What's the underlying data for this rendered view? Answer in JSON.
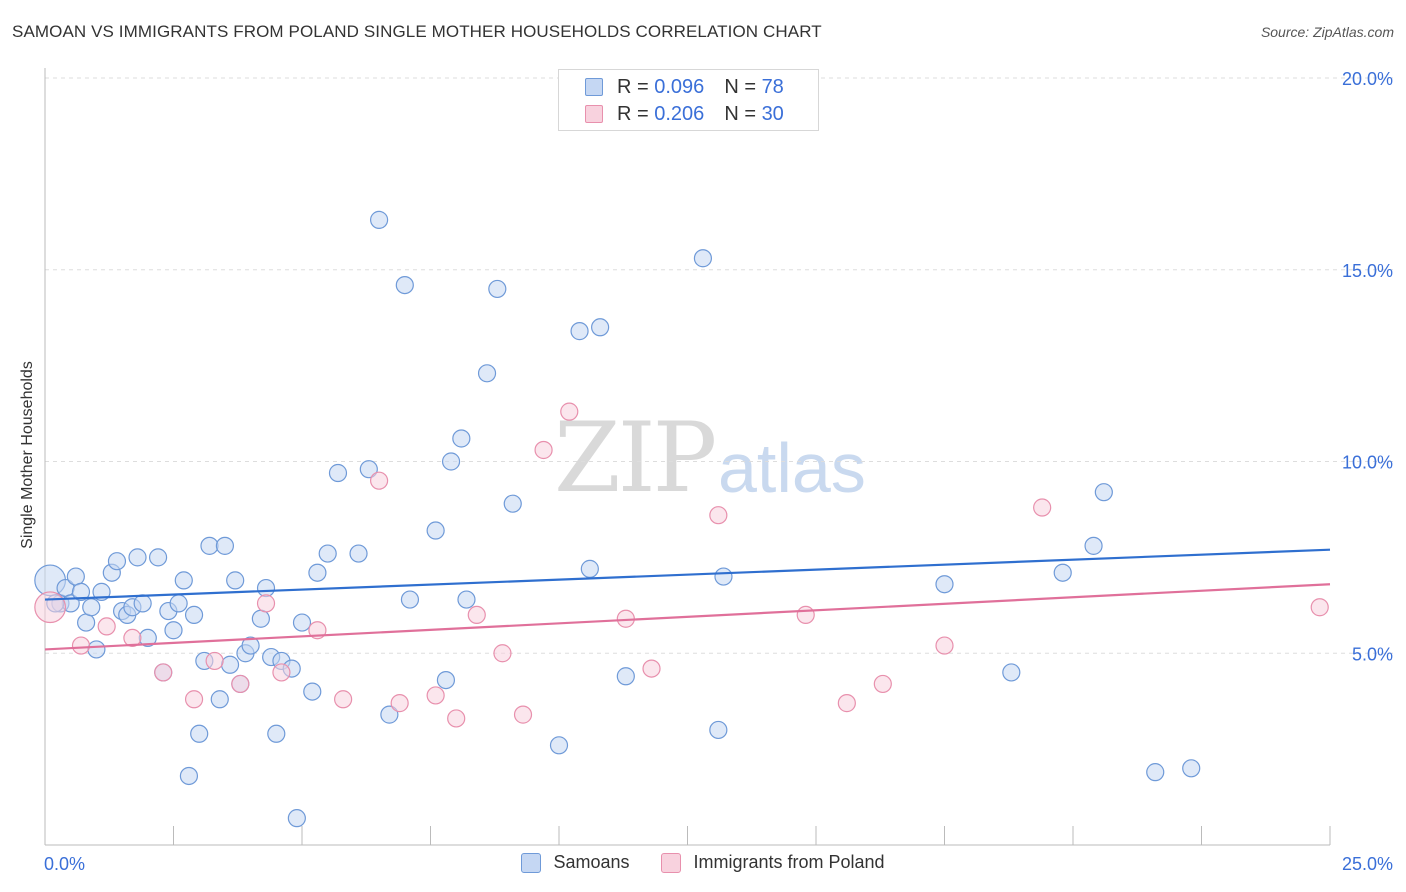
{
  "title": "SAMOAN VS IMMIGRANTS FROM POLAND SINGLE MOTHER HOUSEHOLDS CORRELATION CHART",
  "source": "Source: ZipAtlas.com",
  "watermark": {
    "zip": "ZIP",
    "atlas": "atlas"
  },
  "legend_top": {
    "rows": [
      {
        "r_label": "R =",
        "r_value": "0.096",
        "n_label": "N =",
        "n_value": "78",
        "color": "#a9c4ef"
      },
      {
        "r_label": "R =",
        "r_value": "0.206",
        "n_label": "N =",
        "n_value": "30",
        "color": "#f5b8cb"
      }
    ]
  },
  "legend_bottom": [
    "Samoans",
    "Immigrants from Poland"
  ],
  "chart_data": {
    "type": "scatter",
    "ylabel": "Single Mother Households",
    "x_tick_labels": [
      "0.0%",
      "25.0%"
    ],
    "y_tick_labels": [
      "5.0%",
      "10.0%",
      "15.0%",
      "20.0%"
    ],
    "xlim": [
      0,
      25
    ],
    "ylim": [
      0,
      20
    ],
    "grid": true,
    "colors": {
      "blue_fill": "#c5d7f3",
      "blue_stroke": "#6f9ad8",
      "blue_line": "#2f6fcf",
      "pink_fill": "#f8d2de",
      "pink_stroke": "#e890ad",
      "pink_line": "#e0709a",
      "tick_text": "#3a6fd8"
    },
    "series": [
      {
        "name": "Samoans",
        "trend": {
          "x0": 0,
          "y0": 6.4,
          "x1": 25,
          "y1": 7.7
        },
        "points": [
          [
            0.1,
            6.9,
            1.8
          ],
          [
            0.3,
            6.3,
            1
          ],
          [
            0.4,
            6.7,
            1
          ],
          [
            0.5,
            6.3,
            1
          ],
          [
            0.6,
            7.0,
            1
          ],
          [
            0.7,
            6.6,
            1
          ],
          [
            0.8,
            5.8,
            1
          ],
          [
            0.9,
            6.2,
            1
          ],
          [
            1.0,
            5.1,
            1
          ],
          [
            1.1,
            6.6,
            1
          ],
          [
            1.3,
            7.1,
            1
          ],
          [
            1.4,
            7.4,
            1
          ],
          [
            1.5,
            6.1,
            1
          ],
          [
            1.6,
            6.0,
            1
          ],
          [
            1.7,
            6.2,
            1
          ],
          [
            1.8,
            7.5,
            1
          ],
          [
            1.9,
            6.3,
            1
          ],
          [
            2.0,
            5.4,
            1
          ],
          [
            2.2,
            7.5,
            1
          ],
          [
            2.3,
            4.5,
            1
          ],
          [
            2.4,
            6.1,
            1
          ],
          [
            2.5,
            5.6,
            1
          ],
          [
            2.6,
            6.3,
            1
          ],
          [
            2.7,
            6.9,
            1
          ],
          [
            2.8,
            1.8,
            1
          ],
          [
            2.9,
            6.0,
            1
          ],
          [
            3.0,
            2.9,
            1
          ],
          [
            3.1,
            4.8,
            1
          ],
          [
            3.2,
            7.8,
            1
          ],
          [
            3.4,
            3.8,
            1
          ],
          [
            3.5,
            7.8,
            1
          ],
          [
            3.6,
            4.7,
            1
          ],
          [
            3.7,
            6.9,
            1
          ],
          [
            3.8,
            4.2,
            1
          ],
          [
            3.9,
            5.0,
            1
          ],
          [
            4.0,
            5.2,
            1
          ],
          [
            4.2,
            5.9,
            1
          ],
          [
            4.3,
            6.7,
            1
          ],
          [
            4.4,
            4.9,
            1
          ],
          [
            4.5,
            2.9,
            1
          ],
          [
            4.6,
            4.8,
            1
          ],
          [
            4.8,
            4.6,
            1
          ],
          [
            4.9,
            0.7,
            1
          ],
          [
            5.0,
            5.8,
            1
          ],
          [
            5.2,
            4.0,
            1
          ],
          [
            5.3,
            7.1,
            1
          ],
          [
            5.5,
            7.6,
            1
          ],
          [
            5.7,
            9.7,
            1
          ],
          [
            6.1,
            7.6,
            1
          ],
          [
            6.3,
            9.8,
            1
          ],
          [
            6.5,
            16.3,
            1
          ],
          [
            6.7,
            3.4,
            1
          ],
          [
            7.0,
            14.6,
            1
          ],
          [
            7.1,
            6.4,
            1
          ],
          [
            7.6,
            8.2,
            1
          ],
          [
            7.8,
            4.3,
            1
          ],
          [
            7.9,
            10.0,
            1
          ],
          [
            8.1,
            10.6,
            1
          ],
          [
            8.2,
            6.4,
            1
          ],
          [
            8.6,
            12.3,
            1
          ],
          [
            8.8,
            14.5,
            1
          ],
          [
            9.1,
            8.9,
            1
          ],
          [
            10.0,
            2.6,
            1
          ],
          [
            10.4,
            13.4,
            1
          ],
          [
            10.6,
            7.2,
            1
          ],
          [
            10.8,
            13.5,
            1
          ],
          [
            11.3,
            4.4,
            1
          ],
          [
            12.8,
            15.3,
            1
          ],
          [
            13.1,
            3.0,
            1
          ],
          [
            13.2,
            7.0,
            1
          ],
          [
            17.5,
            6.8,
            1
          ],
          [
            18.8,
            4.5,
            1
          ],
          [
            19.8,
            7.1,
            1
          ],
          [
            20.4,
            7.8,
            1
          ],
          [
            20.6,
            9.2,
            1
          ],
          [
            21.6,
            1.9,
            1
          ],
          [
            22.3,
            2.0,
            1
          ],
          [
            0.2,
            6.3,
            1
          ]
        ]
      },
      {
        "name": "Immigrants from Poland",
        "trend": {
          "x0": 0,
          "y0": 5.1,
          "x1": 25,
          "y1": 6.8
        },
        "points": [
          [
            0.1,
            6.2,
            1.8
          ],
          [
            0.7,
            5.2,
            1
          ],
          [
            1.2,
            5.7,
            1
          ],
          [
            1.7,
            5.4,
            1
          ],
          [
            2.3,
            4.5,
            1
          ],
          [
            2.9,
            3.8,
            1
          ],
          [
            3.3,
            4.8,
            1
          ],
          [
            3.8,
            4.2,
            1
          ],
          [
            4.3,
            6.3,
            1
          ],
          [
            4.6,
            4.5,
            1
          ],
          [
            5.3,
            5.6,
            1
          ],
          [
            5.8,
            3.8,
            1
          ],
          [
            6.5,
            9.5,
            1
          ],
          [
            6.9,
            3.7,
            1
          ],
          [
            7.6,
            3.9,
            1
          ],
          [
            8.0,
            3.3,
            1
          ],
          [
            8.4,
            6.0,
            1
          ],
          [
            8.9,
            5.0,
            1
          ],
          [
            9.3,
            3.4,
            1
          ],
          [
            9.7,
            10.3,
            1
          ],
          [
            10.2,
            11.3,
            1
          ],
          [
            11.3,
            5.9,
            1
          ],
          [
            11.8,
            4.6,
            1
          ],
          [
            13.1,
            8.6,
            1
          ],
          [
            14.8,
            6.0,
            1
          ],
          [
            15.6,
            3.7,
            1
          ],
          [
            16.3,
            4.2,
            1
          ],
          [
            17.5,
            5.2,
            1
          ],
          [
            19.4,
            8.8,
            1
          ],
          [
            24.8,
            6.2,
            1
          ]
        ]
      }
    ]
  }
}
